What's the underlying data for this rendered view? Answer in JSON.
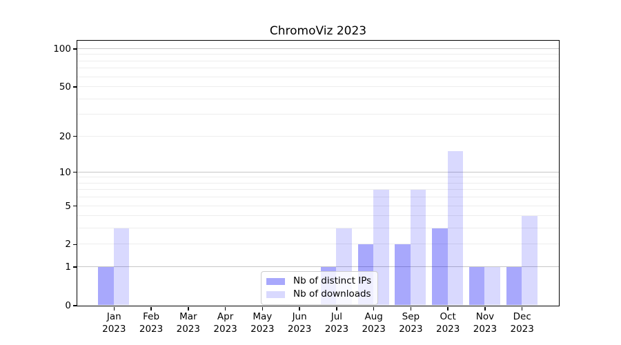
{
  "title": "ChromoViz 2023",
  "y_axis": {
    "tick_values": [
      0,
      1,
      2,
      5,
      10,
      20,
      50,
      100
    ],
    "tick_labels": [
      "0",
      "1",
      "2",
      "5",
      "10",
      "20",
      "50",
      "100"
    ]
  },
  "x_axis": {
    "months": [
      "Jan",
      "Feb",
      "Mar",
      "Apr",
      "May",
      "Jun",
      "Jul",
      "Aug",
      "Sep",
      "Oct",
      "Nov",
      "Dec"
    ],
    "year": "2023"
  },
  "legend": {
    "items": [
      {
        "label": "Nb of distinct IPs"
      },
      {
        "label": "Nb of downloads"
      }
    ]
  },
  "colors": {
    "bar_distinct_ips": "rgba(0,0,245,0.34)",
    "bar_downloads": "rgba(0,0,245,0.15)",
    "grid_major": "#c6c6c6",
    "grid_minor": "#ededed"
  },
  "chart_data": {
    "type": "bar",
    "title": "ChromoViz 2023",
    "categories": [
      "Jan 2023",
      "Feb 2023",
      "Mar 2023",
      "Apr 2023",
      "May 2023",
      "Jun 2023",
      "Jul 2023",
      "Aug 2023",
      "Sep 2023",
      "Oct 2023",
      "Nov 2023",
      "Dec 2023"
    ],
    "series": [
      {
        "name": "Nb of distinct IPs",
        "values": [
          1,
          0,
          0,
          0,
          0,
          0,
          1,
          2,
          2,
          3,
          1,
          1
        ],
        "color": "rgba(0,0,245,0.34)"
      },
      {
        "name": "Nb of downloads",
        "values": [
          3,
          0,
          0,
          0,
          0,
          0,
          3,
          7,
          7,
          15,
          1,
          4
        ],
        "color": "rgba(0,0,245,0.15)"
      }
    ],
    "xlabel": "",
    "ylabel": "",
    "yscale": "log1p",
    "yticks": [
      0,
      1,
      2,
      5,
      10,
      20,
      50,
      100
    ],
    "ylim": [
      0,
      116
    ],
    "grid": true,
    "legend_position": "lower center"
  }
}
